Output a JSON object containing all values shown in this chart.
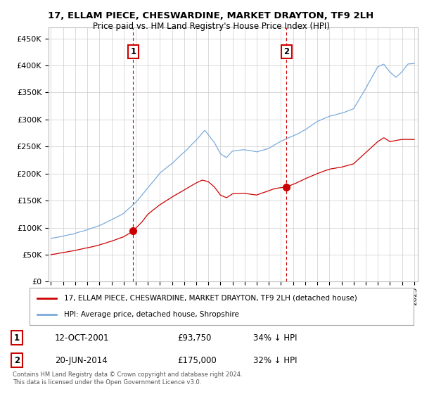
{
  "title": "17, ELLAM PIECE, CHESWARDINE, MARKET DRAYTON, TF9 2LH",
  "subtitle": "Price paid vs. HM Land Registry's House Price Index (HPI)",
  "legend_entry1": "17, ELLAM PIECE, CHESWARDINE, MARKET DRAYTON, TF9 2LH (detached house)",
  "legend_entry2": "HPI: Average price, detached house, Shropshire",
  "transaction1_label": "1",
  "transaction1_date": "12-OCT-2001",
  "transaction1_price": "£93,750",
  "transaction1_hpi": "34% ↓ HPI",
  "transaction1_year": 2001.79,
  "transaction1_value": 93750,
  "transaction2_label": "2",
  "transaction2_date": "20-JUN-2014",
  "transaction2_price": "£175,000",
  "transaction2_hpi": "32% ↓ HPI",
  "transaction2_year": 2014.46,
  "transaction2_value": 175000,
  "footer": "Contains HM Land Registry data © Crown copyright and database right 2024.\nThis data is licensed under the Open Government Licence v3.0.",
  "background_color": "#ffffff",
  "grid_color": "#cccccc",
  "red_line_color": "#cc0000",
  "blue_line_color": "#7aabdb",
  "vline_color": "#cc0000",
  "ylim": [
    0,
    470000
  ],
  "xlim_start": 1994.8,
  "xlim_end": 2025.3
}
